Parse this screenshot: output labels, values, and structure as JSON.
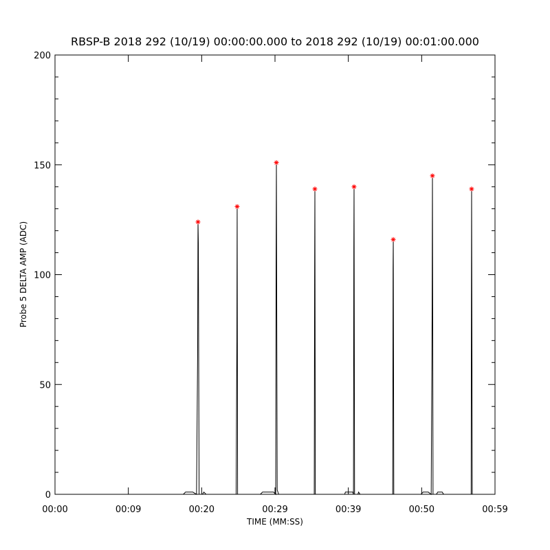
{
  "chart_data": {
    "type": "line",
    "title": "RBSP-B 2018 292 (10/19) 00:00:00.000 to 2018 292 (10/19) 00:01:00.000",
    "x_label": "TIME (MM:SS)",
    "y_label": "Probe 5 DELTA AMP (ADC)",
    "xlim": [
      0,
      60
    ],
    "xticks": [
      {
        "value": 0,
        "label": "00:00"
      },
      {
        "value": 10,
        "label": "00:09"
      },
      {
        "value": 20,
        "label": "00:20"
      },
      {
        "value": 30,
        "label": "00:29"
      },
      {
        "value": 40,
        "label": "00:39"
      },
      {
        "value": 50,
        "label": "00:50"
      },
      {
        "value": 60,
        "label": "00:59"
      }
    ],
    "ylim": [
      0,
      200
    ],
    "yticks": [
      0,
      50,
      100,
      150,
      200
    ],
    "series": [
      {
        "color": "#000000",
        "marker": "none",
        "x": [
          0,
          17.5,
          17.8,
          18.8,
          19.3,
          19.45,
          19.5,
          19.55,
          19.65,
          20.1,
          20.3,
          20.6,
          24.7,
          24.8,
          24.84,
          24.9,
          28.0,
          28.3,
          29.8,
          30.1,
          30.15,
          30.19,
          30.3,
          30.5,
          35.35,
          35.4,
          35.44,
          35.5,
          39.5,
          39.6,
          40.6,
          40.7,
          40.75,
          40.78,
          40.85,
          41.3,
          41.4,
          41.6,
          46.05,
          46.1,
          46.13,
          46.2,
          49.9,
          50.2,
          50.9,
          51.3,
          51.42,
          51.47,
          51.55,
          52.0,
          52.2,
          52.8,
          53.0,
          56.75,
          56.78,
          56.81,
          56.9,
          57.2
        ],
        "values": [
          0,
          0,
          1,
          1,
          0,
          64,
          124,
          114,
          0,
          0,
          1,
          0,
          0,
          70,
          131,
          0,
          0,
          1,
          1,
          0,
          106,
          151,
          2,
          0,
          0,
          97,
          139,
          0,
          0,
          1,
          1,
          0,
          112,
          140,
          0,
          0,
          1,
          0,
          0,
          103,
          116,
          0,
          0,
          1,
          1,
          0,
          80,
          145,
          0,
          0,
          1,
          1,
          0,
          0,
          84,
          139,
          0,
          0
        ]
      },
      {
        "color": "#ff0000",
        "marker": "asterisk",
        "x": [
          19.5,
          24.84,
          30.19,
          35.44,
          40.78,
          46.13,
          51.47,
          56.81
        ],
        "values": [
          124,
          131,
          151,
          139,
          140,
          116,
          145,
          139
        ]
      }
    ]
  }
}
